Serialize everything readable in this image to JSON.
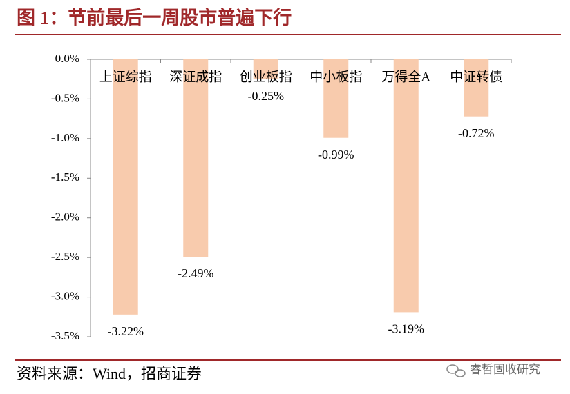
{
  "chart_data": {
    "type": "bar",
    "title": "图 1：节前最后一周股市普遍下行",
    "categories": [
      "上证综指",
      "深证成指",
      "创业板指",
      "中小板指",
      "万得全A",
      "中证转债"
    ],
    "values": [
      -3.22,
      -2.49,
      -0.25,
      -0.99,
      -3.19,
      -0.72
    ],
    "value_labels": [
      "-3.22%",
      "-2.49%",
      "-0.25%",
      "-0.99%",
      "-3.19%",
      "-0.72%"
    ],
    "color": "#F8CBAD",
    "ylim": [
      -3.5,
      0
    ],
    "yticks": [
      {
        "value": 0,
        "label": "0.0%"
      },
      {
        "value": -0.5,
        "label": "-0.5%"
      },
      {
        "value": -1,
        "label": "-1.0%"
      },
      {
        "value": -1.5,
        "label": "-1.5%"
      },
      {
        "value": -2,
        "label": "-2.0%"
      },
      {
        "value": -2.5,
        "label": "-2.5%"
      },
      {
        "value": -3,
        "label": "-3.0%"
      },
      {
        "value": -3.5,
        "label": "-3.5%"
      }
    ],
    "source": "资料来源：Wind，招商证券",
    "watermark": "睿哲固收研究"
  }
}
